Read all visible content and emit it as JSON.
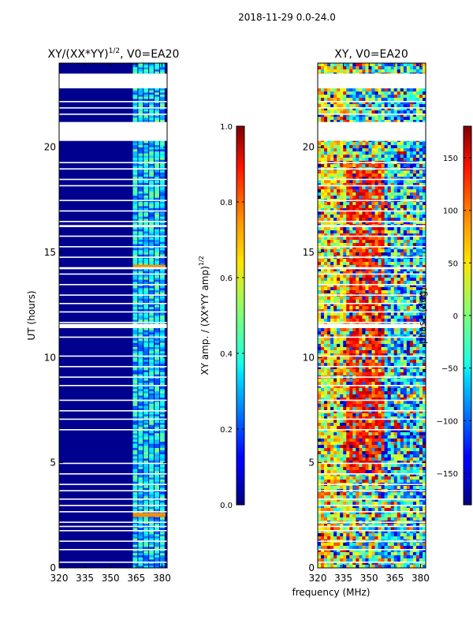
{
  "figure_title": "2018-11-29 0.0-24.0",
  "shared_xlabel": "frequency (MHz)",
  "chart_data": [
    {
      "type": "heatmap",
      "title_main": "XY/(XX*YY)",
      "title_exp": "1/2",
      "title_tail": ", V0=EA20",
      "ylabel": "UT (hours)",
      "xlim": [
        320,
        383
      ],
      "ylim": [
        0,
        24
      ],
      "xticks": [
        320,
        335,
        350,
        365,
        380
      ],
      "yticks": [
        0,
        5,
        10,
        15,
        20
      ],
      "colorbar": {
        "label_main": "XY amp. / (XX*YY amp)",
        "label_exp": "1/2",
        "range": [
          0.0,
          1.0
        ],
        "ticks": [
          "0.0",
          "0.2",
          "0.4",
          "0.6",
          "0.8",
          "1.0"
        ],
        "tick_values": [
          0.0,
          0.2,
          0.4,
          0.6,
          0.8,
          1.0
        ],
        "colormap": "jet"
      },
      "data_gaps_hours": [
        [
          20.3,
          21.2
        ],
        [
          22.8,
          23.5
        ],
        [
          14.2,
          14.3
        ],
        [
          11.4,
          11.6
        ],
        [
          16.2,
          16.3
        ]
      ],
      "bright_band_freq_range_MHz": [
        363,
        382
      ],
      "bright_rows_hours": [
        2.5,
        14.3
      ]
    },
    {
      "type": "heatmap",
      "title_main": "XY, V0=EA20",
      "xlim": [
        320,
        383
      ],
      "ylim": [
        0,
        24
      ],
      "xticks": [
        320,
        335,
        350,
        365,
        380
      ],
      "yticks": [
        0,
        5,
        10,
        15,
        20
      ],
      "colorbar": {
        "label": "phase (deg)",
        "range": [
          -180,
          180
        ],
        "ticks": [
          "150",
          "100",
          "50",
          "0",
          "−50",
          "−100",
          "−150"
        ],
        "tick_values": [
          150,
          100,
          50,
          0,
          -50,
          -100,
          -150
        ],
        "colormap": "jet"
      },
      "data_gaps_hours": [
        [
          20.3,
          21.2
        ],
        [
          22.8,
          23.5
        ]
      ]
    }
  ]
}
